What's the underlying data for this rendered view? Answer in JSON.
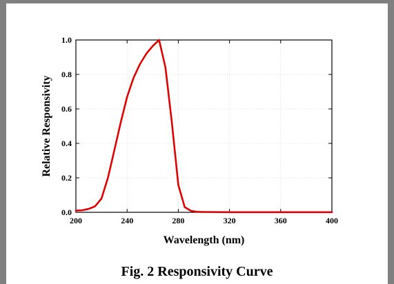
{
  "caption": "Fig. 2 Responsivity Curve",
  "chart_data": {
    "type": "line",
    "title": "",
    "xlabel": "Wavelength (nm)",
    "ylabel": "Relative Responsivity",
    "xlim": [
      200,
      400
    ],
    "ylim": [
      0.0,
      1.0
    ],
    "xticks": [
      200,
      240,
      280,
      320,
      360,
      400
    ],
    "xtick_labels": [
      "200",
      "240",
      "280",
      "320",
      "360",
      "400"
    ],
    "yticks": [
      0.0,
      0.2,
      0.4,
      0.6,
      0.8,
      1.0
    ],
    "ytick_labels": [
      "0.0",
      "0.2",
      "0.4",
      "0.6",
      "0.8",
      "1.0"
    ],
    "grid": true,
    "series": [
      {
        "color": "#e00000",
        "x": [
          200,
          205,
          210,
          215,
          220,
          225,
          230,
          235,
          240,
          245,
          250,
          255,
          260,
          265,
          270,
          275,
          280,
          285,
          290,
          295,
          300,
          320,
          360,
          400
        ],
        "y": [
          0.01,
          0.012,
          0.02,
          0.035,
          0.08,
          0.2,
          0.36,
          0.52,
          0.67,
          0.78,
          0.86,
          0.92,
          0.965,
          1.0,
          0.84,
          0.52,
          0.16,
          0.03,
          0.008,
          0.003,
          0.002,
          0.001,
          0.001,
          0.001
        ]
      }
    ]
  }
}
